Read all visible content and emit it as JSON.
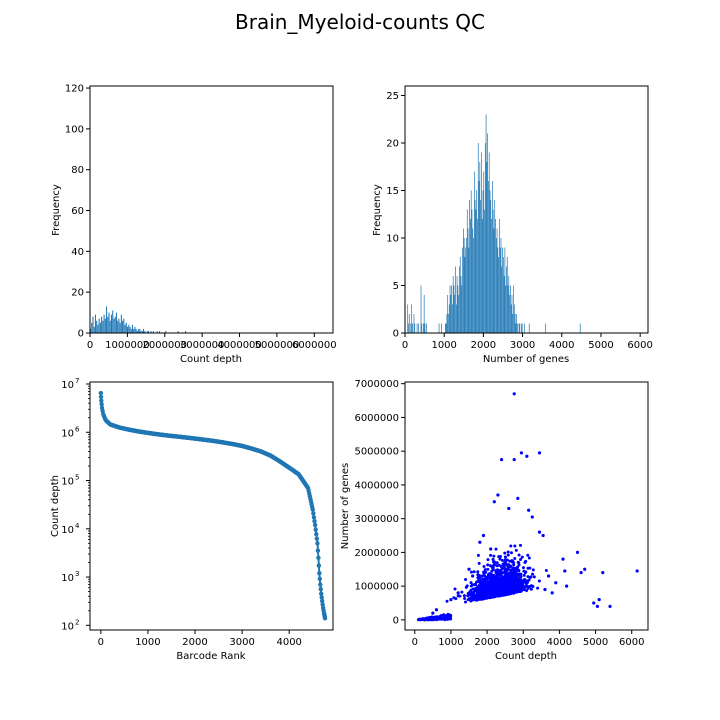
{
  "figure": {
    "title": "Brain_Myeloid-counts QC"
  },
  "colors": {
    "hist": "#1f77b4",
    "scatter": "#0000ff",
    "rank": "#1f77b4"
  },
  "chart_data": [
    {
      "type": "bar",
      "subtype": "histogram",
      "xlabel": "Count depth",
      "ylabel": "Frequency",
      "xlim": [
        0,
        6500000
      ],
      "ylim": [
        0,
        121
      ],
      "xticks": [
        0,
        1000000,
        2000000,
        3000000,
        4000000,
        5000000,
        6000000
      ],
      "xtick_labels": [
        "0",
        "1000000",
        "2000000",
        "3000000",
        "4000000",
        "5000000",
        "6000000"
      ],
      "yticks": [
        0,
        20,
        40,
        60,
        80,
        100,
        120
      ],
      "ytick_labels": [
        "0",
        "20",
        "40",
        "60",
        "80",
        "100",
        "120"
      ],
      "bin_width": 33000,
      "bins_start": [
        0,
        33000,
        66000,
        99000,
        132000,
        165000,
        198000,
        231000,
        264000,
        297000,
        330000,
        363000,
        396000,
        429000,
        462000,
        495000,
        528000,
        561000,
        594000,
        627000,
        660000,
        693000,
        726000,
        759000,
        792000,
        825000,
        858000,
        891000,
        924000,
        957000,
        990000,
        1023000,
        1056000,
        1089000,
        1122000,
        1155000,
        1188000,
        1221000,
        1254000,
        1287000,
        1320000,
        1353000,
        1386000,
        1419000,
        1452000,
        1485000,
        1518000,
        1551000,
        1584000,
        1617000,
        1650000,
        1683000,
        1716000,
        1749000,
        1782000,
        1815000,
        1848000,
        1881000,
        1914000,
        1947000,
        1980000,
        2013000,
        2046000,
        2079000,
        2112000,
        2145000,
        2178000,
        2211000,
        2244000,
        2277000,
        2310000,
        2343000,
        2376000,
        2409000,
        2442000,
        2475000,
        2508000,
        2541000,
        2574000,
        2607000,
        2640000,
        2673000,
        2706000,
        2739000,
        2772000,
        2805000,
        2838000,
        2871000,
        2904000,
        2937000,
        2970000,
        3003000,
        3036000,
        3069000,
        3102000,
        3135000,
        3168000,
        3201000,
        3234000,
        3267000,
        3300000,
        3333000,
        3366000,
        3399000,
        3432000,
        3465000,
        3498000,
        3531000,
        3564000,
        3597000,
        3630000,
        3663000,
        3696000,
        3729000,
        3762000,
        3795000,
        3828000,
        3861000,
        3894000,
        3927000,
        3960000,
        3993000,
        4026000,
        4059000,
        4092000,
        4125000,
        4158000,
        4191000,
        4224000,
        4257000,
        4290000,
        4323000,
        4356000,
        4389000,
        4422000,
        4455000,
        4488000,
        4521000,
        4554000,
        4587000,
        4620000,
        4653000,
        4686000,
        4719000,
        4752000,
        4785000,
        4818000,
        4851000,
        4884000,
        4917000,
        4950000,
        4983000,
        5016000,
        5049000,
        5082000,
        5115000,
        5148000,
        5181000,
        5214000,
        5247000,
        5280000,
        5313000,
        5346000,
        5379000,
        5412000,
        5445000,
        5478000,
        5511000,
        5544000,
        5577000,
        5610000,
        5643000,
        5676000,
        5709000,
        5742000,
        5775000,
        5808000,
        5841000,
        5874000,
        5907000,
        5940000,
        5973000,
        6006000,
        6039000,
        6072000,
        6105000,
        6138000,
        6171000,
        6204000,
        6237000,
        6270000,
        6303000,
        6336000,
        6369000,
        6402000,
        6435000,
        6468000
      ],
      "counts": [
        2,
        5,
        8,
        3,
        9,
        6,
        4,
        7,
        5,
        8,
        6,
        9,
        7,
        13,
        8,
        10,
        6,
        9,
        11,
        7,
        8,
        10,
        6,
        7,
        5,
        9,
        6,
        7,
        4,
        5,
        3,
        4,
        3,
        2,
        4,
        2,
        3,
        2,
        1,
        2,
        2,
        1,
        1,
        2,
        1,
        0,
        1,
        1,
        0,
        1,
        0,
        1,
        0,
        0,
        1,
        0,
        1,
        0,
        0,
        0,
        0,
        1,
        0,
        0,
        0,
        0,
        0,
        0,
        0,
        0,
        0,
        1,
        0,
        0,
        0,
        0,
        0,
        1,
        0,
        0,
        0,
        0,
        0,
        0,
        0,
        0,
        0,
        0,
        0,
        0,
        0,
        0,
        0,
        0,
        0,
        0,
        0,
        0,
        0,
        0,
        0,
        0,
        0,
        0,
        0,
        0,
        0,
        0,
        0,
        0,
        0,
        0,
        0,
        0,
        0,
        0,
        0,
        0,
        0,
        0,
        0,
        0,
        0,
        0,
        0,
        0,
        0,
        0,
        0,
        0,
        0,
        0,
        0,
        0,
        0,
        0,
        0,
        0,
        0,
        0,
        0,
        0,
        0,
        0,
        0,
        0,
        0,
        0,
        0,
        0,
        0,
        0,
        0,
        0,
        0,
        0,
        0,
        0,
        0,
        0,
        0,
        0,
        0,
        0,
        0,
        0,
        0,
        0,
        0,
        0,
        0,
        0,
        0,
        0,
        0,
        0,
        0,
        0,
        0,
        0,
        0,
        0,
        0,
        0,
        0,
        0,
        0,
        0,
        0,
        0,
        0,
        0,
        0,
        0,
        0,
        0,
        0
      ]
    },
    {
      "type": "bar",
      "subtype": "histogram",
      "xlabel": "Number of genes",
      "ylabel": "Frequency",
      "xlim": [
        0,
        6200
      ],
      "ylim": [
        0,
        26
      ],
      "xticks": [
        0,
        1000,
        2000,
        3000,
        4000,
        5000,
        6000
      ],
      "xtick_labels": [
        "0",
        "1000",
        "2000",
        "3000",
        "4000",
        "5000",
        "6000"
      ],
      "yticks": [
        0,
        5,
        10,
        15,
        20,
        25
      ],
      "ytick_labels": [
        "0",
        "5",
        "10",
        "15",
        "20",
        "25"
      ],
      "bin_width": 20,
      "bin_start": 60,
      "counts": [
        3,
        1,
        2,
        0,
        1,
        3,
        1,
        0,
        2,
        1,
        0,
        0,
        1,
        0,
        1,
        0,
        0,
        5,
        1,
        0,
        1,
        4,
        1,
        0,
        1,
        0,
        0,
        0,
        0,
        0,
        0,
        0,
        0,
        0,
        0,
        0,
        0,
        0,
        0,
        0,
        1,
        0,
        0,
        1,
        0,
        0,
        0,
        0,
        1,
        1,
        2,
        4,
        2,
        3,
        5,
        4,
        5,
        3,
        6,
        5,
        4,
        7,
        3,
        6,
        5,
        4,
        7,
        8,
        6,
        5,
        9,
        11,
        10,
        8,
        9,
        10,
        13,
        11,
        9,
        14,
        12,
        15,
        13,
        11,
        10,
        17,
        14,
        13,
        15,
        12,
        20,
        16,
        18,
        14,
        19,
        12,
        15,
        17,
        13,
        20,
        23,
        18,
        21,
        16,
        19,
        15,
        14,
        12,
        16,
        13,
        11,
        14,
        12,
        10,
        11,
        9,
        8,
        12,
        9,
        10,
        7,
        9,
        8,
        6,
        9,
        5,
        7,
        8,
        5,
        6,
        4,
        5,
        3,
        4,
        2,
        5,
        3,
        2,
        1,
        2,
        1,
        0,
        1,
        1,
        0,
        1,
        1,
        0,
        0,
        1,
        0,
        0,
        0,
        0,
        0,
        1,
        0,
        0,
        0,
        0,
        0,
        0,
        0,
        0,
        0,
        0,
        0,
        0,
        0,
        0,
        0,
        0,
        0,
        0,
        0,
        0,
        1,
        0,
        0,
        0,
        0,
        0,
        0,
        0,
        0,
        0,
        0,
        0,
        0,
        0,
        0,
        0,
        0,
        0,
        0,
        0,
        0,
        0,
        0,
        0,
        0,
        0,
        0,
        0,
        0,
        0,
        0,
        0,
        0,
        0,
        0,
        0,
        0,
        0,
        0,
        0,
        0,
        0,
        0,
        0,
        1,
        0
      ]
    },
    {
      "type": "line",
      "xlabel": "Barcode Rank",
      "ylabel": "Count depth",
      "yscale": "log",
      "xlim": [
        -230,
        4930
      ],
      "ylim": [
        80,
        11000000
      ],
      "xticks": [
        0,
        1000,
        2000,
        3000,
        4000
      ],
      "xtick_labels": [
        "0",
        "1000",
        "2000",
        "3000",
        "4000"
      ],
      "ytick_powers": [
        2,
        3,
        4,
        5,
        6,
        7
      ],
      "x": [
        0,
        10,
        25,
        50,
        100,
        200,
        400,
        600,
        800,
        1000,
        1200,
        1400,
        1600,
        1800,
        2000,
        2200,
        2400,
        2600,
        2800,
        3000,
        3200,
        3400,
        3600,
        3800,
        4000,
        4200,
        4400,
        4500,
        4550,
        4600,
        4620,
        4640,
        4660,
        4680,
        4700,
        4720,
        4740,
        4750,
        4760
      ],
      "y": [
        6500000,
        4500000,
        3200000,
        2400000,
        1800000,
        1450000,
        1250000,
        1130000,
        1040000,
        970000,
        910000,
        860000,
        820000,
        780000,
        740000,
        700000,
        660000,
        615000,
        570000,
        520000,
        460000,
        400000,
        330000,
        250000,
        185000,
        135000,
        70000,
        25000,
        12000,
        5000,
        2500,
        1200,
        700,
        450,
        320,
        230,
        180,
        160,
        140
      ]
    },
    {
      "type": "scatter",
      "xlabel": "Count depth",
      "ylabel": "Number of genes",
      "xlim": [
        -270,
        6450
      ],
      "ylim": [
        -300000,
        7050000
      ],
      "xticks": [
        0,
        1000,
        2000,
        3000,
        4000,
        5000,
        6000
      ],
      "xtick_labels": [
        "0",
        "1000",
        "2000",
        "3000",
        "4000",
        "5000",
        "6000"
      ],
      "yticks": [
        0,
        1000000,
        2000000,
        3000000,
        4000000,
        5000000,
        6000000,
        7000000
      ],
      "ytick_labels": [
        "0",
        "1000000",
        "2000000",
        "3000000",
        "4000000",
        "5000000",
        "6000000",
        "7000000"
      ],
      "points": [
        [
          2750,
          6700000
        ],
        [
          2400,
          4750000
        ],
        [
          2750,
          4750000
        ],
        [
          2950,
          4950000
        ],
        [
          3100,
          4850000
        ],
        [
          3450,
          4950000
        ],
        [
          2850,
          3600000
        ],
        [
          2300,
          3700000
        ],
        [
          2200,
          3500000
        ],
        [
          2600,
          3300000
        ],
        [
          3150,
          3250000
        ],
        [
          3250,
          3050000
        ],
        [
          3450,
          2600000
        ],
        [
          3550,
          2500000
        ],
        [
          4100,
          1800000
        ],
        [
          4150,
          1450000
        ],
        [
          4500,
          2000000
        ],
        [
          4600,
          1400000
        ],
        [
          4700,
          1500000
        ],
        [
          4950,
          500000
        ],
        [
          5050,
          400000
        ],
        [
          5100,
          600000
        ],
        [
          5200,
          1400000
        ],
        [
          5400,
          400000
        ],
        [
          6150,
          1450000
        ],
        [
          4200,
          1000000
        ],
        [
          3900,
          1100000
        ],
        [
          3800,
          800000
        ],
        [
          3700,
          1300000
        ],
        [
          3600,
          900000
        ],
        [
          1500,
          1500000
        ],
        [
          1600,
          1300000
        ],
        [
          1800,
          2300000
        ],
        [
          1900,
          2500000
        ],
        [
          2100,
          2100000
        ],
        [
          500,
          200000
        ],
        [
          600,
          300000
        ],
        [
          800,
          150000
        ],
        [
          1000,
          600000
        ],
        [
          1200,
          800000
        ]
      ],
      "cloud": {
        "count": 1700,
        "x_center": 2300,
        "x_sd": 350,
        "y_center": 700000,
        "y_sd": 380000
      }
    }
  ]
}
